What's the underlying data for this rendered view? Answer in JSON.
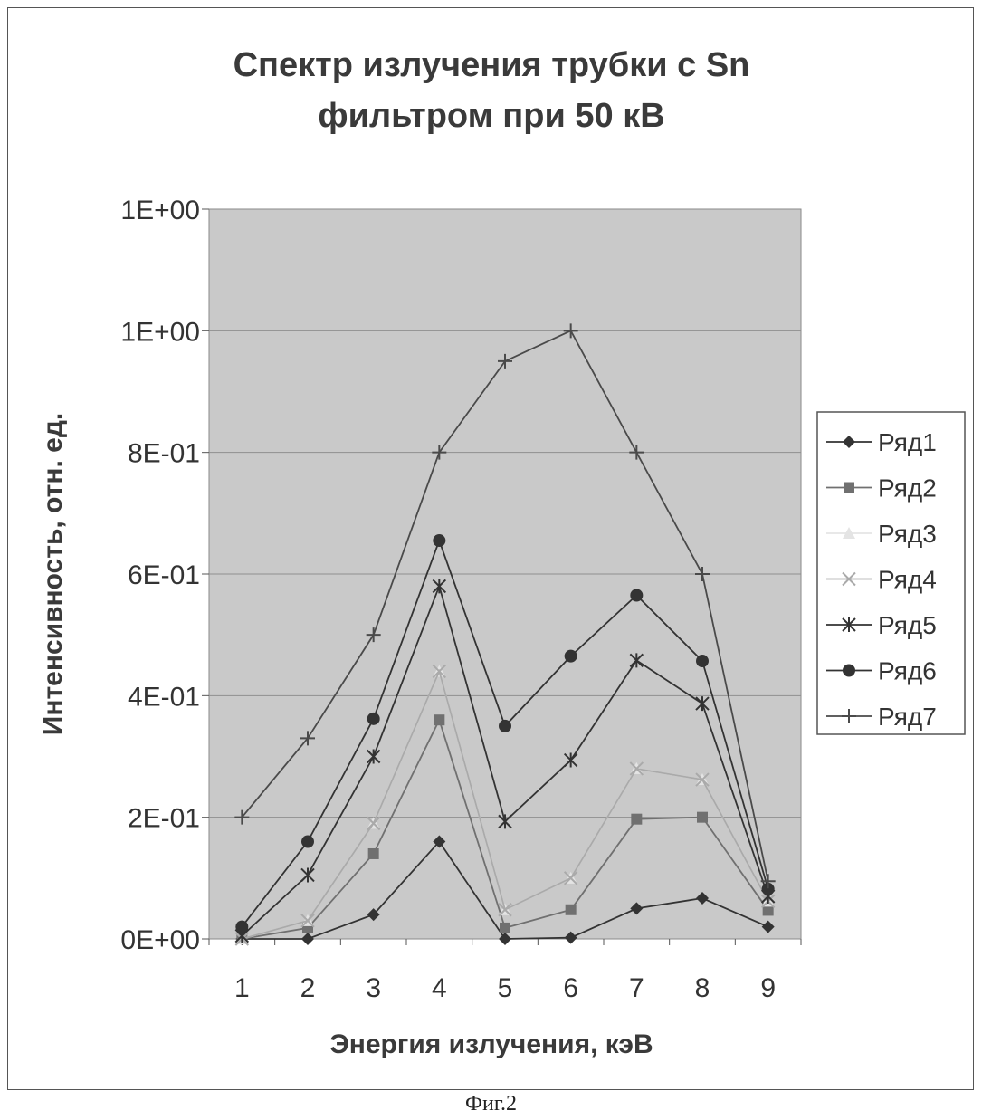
{
  "figure_caption": "Фиг.2",
  "chart_data": {
    "type": "line",
    "title_lines": [
      "Спектр излучения трубки с Sn",
      "фильтром при 50 кВ"
    ],
    "xlabel": "Энергия излучения, кэВ",
    "ylabel": "Интенсивность, отн. ед.",
    "x": [
      1,
      2,
      3,
      4,
      5,
      6,
      7,
      8,
      9
    ],
    "x_tick_labels": [
      "1",
      "2",
      "3",
      "4",
      "5",
      "6",
      "7",
      "8",
      "9"
    ],
    "ylim": [
      0,
      1.2
    ],
    "y_ticks": [
      0,
      0.2,
      0.4,
      0.6,
      0.8,
      1.0,
      1.2
    ],
    "y_tick_labels": [
      "0E+00",
      "2E-01",
      "4E-01",
      "6E-01",
      "8E-01",
      "1E+00",
      "1E+00"
    ],
    "grid": "horizontal",
    "plot_background": "#c9c9c9",
    "legend_position": "right",
    "series": [
      {
        "name": "Ряд1",
        "marker": "diamond",
        "color": "#333333",
        "values": [
          0.0,
          0.0,
          0.04,
          0.16,
          0.0,
          0.002,
          0.05,
          0.067,
          0.02
        ]
      },
      {
        "name": "Ряд2",
        "marker": "square",
        "color": "#707070",
        "values": [
          0.0,
          0.018,
          0.14,
          0.36,
          0.018,
          0.048,
          0.197,
          0.2,
          0.047
        ]
      },
      {
        "name": "Ряд3",
        "marker": "triangle",
        "color": "#e4e4e4",
        "values": [
          0.0,
          0.03,
          0.19,
          0.44,
          0.048,
          0.1,
          0.28,
          0.262,
          0.062
        ]
      },
      {
        "name": "Ряд4",
        "marker": "x",
        "color": "#aaaaaa",
        "values": [
          0.0,
          0.03,
          0.19,
          0.44,
          0.048,
          0.1,
          0.28,
          0.262,
          0.062
        ]
      },
      {
        "name": "Ряд5",
        "marker": "star",
        "color": "#333333",
        "values": [
          0.005,
          0.105,
          0.3,
          0.58,
          0.193,
          0.294,
          0.458,
          0.387,
          0.07
        ]
      },
      {
        "name": "Ряд6",
        "marker": "circle",
        "color": "#333333",
        "values": [
          0.02,
          0.16,
          0.362,
          0.655,
          0.35,
          0.465,
          0.565,
          0.457,
          0.082
        ]
      },
      {
        "name": "Ряд7",
        "marker": "plus",
        "color": "#4a4a4a",
        "values": [
          0.2,
          0.33,
          0.5,
          0.8,
          0.95,
          1.0,
          0.8,
          0.6,
          0.095
        ]
      }
    ]
  }
}
